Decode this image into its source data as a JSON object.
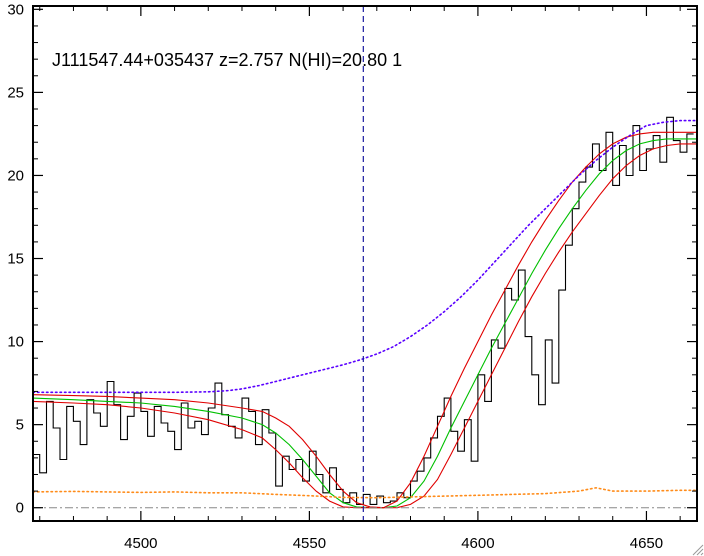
{
  "chart_data": {
    "type": "line",
    "title": "J111547.44+035437 z=2.757 N(HI)=20.80 1",
    "xlabel": "",
    "ylabel": "",
    "xlim": [
      4468,
      4665
    ],
    "ylim": [
      -0.8,
      30.2
    ],
    "x_ticks": [
      4500,
      4550,
      4600,
      4650
    ],
    "x_tick_labels": [
      "4500",
      "4550",
      "4600",
      "4650"
    ],
    "y_ticks": [
      0,
      5,
      10,
      15,
      20,
      25,
      30
    ],
    "y_tick_labels": [
      "0",
      "5",
      "10",
      "15",
      "20",
      "25",
      "30"
    ],
    "grid": false,
    "legend": "none",
    "reference_lines": {
      "dashed_vertical_x": 4566,
      "dash_dot_horizontal_y": 0
    },
    "colors": {
      "flux": "#000000",
      "model": "#00c000",
      "model_bounds": "#e00000",
      "continuum": "#5a00ff",
      "error": "#ff8c1a",
      "marker": "#1a1aa0",
      "zero": "#888888"
    },
    "series": [
      {
        "style": "histogram",
        "color": "#000000",
        "x": [
          4468,
          4470,
          4472,
          4474,
          4476,
          4478,
          4480,
          4482,
          4484,
          4486,
          4488,
          4490,
          4492,
          4494,
          4496,
          4498,
          4500,
          4502,
          4504,
          4506,
          4508,
          4510,
          4512,
          4514,
          4516,
          4518,
          4520,
          4522,
          4524,
          4526,
          4528,
          4530,
          4532,
          4534,
          4536,
          4538,
          4540,
          4542,
          4544,
          4546,
          4548,
          4550,
          4552,
          4554,
          4556,
          4558,
          4560,
          4562,
          4564,
          4566,
          4568,
          4570,
          4572,
          4574,
          4576,
          4578,
          4580,
          4582,
          4584,
          4586,
          4588,
          4590,
          4592,
          4594,
          4596,
          4598,
          4600,
          4602,
          4604,
          4606,
          4608,
          4610,
          4612,
          4614,
          4616,
          4618,
          4620,
          4622,
          4624,
          4626,
          4628,
          4630,
          4632,
          4634,
          4636,
          4638,
          4640,
          4642,
          4644,
          4646,
          4648,
          4650,
          4652,
          4654,
          4656,
          4658,
          4660,
          4662
        ],
        "y": [
          3.2,
          2.1,
          6.4,
          4.8,
          2.9,
          6.1,
          5.2,
          3.8,
          6.5,
          5.7,
          4.9,
          7.6,
          6.2,
          4.1,
          5.5,
          6.9,
          5.8,
          4.3,
          6.1,
          5.1,
          4.6,
          3.5,
          6.3,
          4.8,
          5.2,
          4.4,
          6.0,
          7.5,
          5.6,
          4.9,
          4.2,
          6.6,
          5.8,
          3.8,
          5.9,
          4.5,
          1.3,
          3.1,
          2.3,
          2.9,
          1.6,
          3.4,
          2.0,
          0.9,
          2.4,
          1.1,
          0.3,
          0.9,
          0.2,
          0.8,
          0.2,
          0.7,
          0.3,
          0.4,
          0.9,
          0.6,
          1.6,
          2.2,
          3.0,
          4.2,
          5.5,
          6.6,
          4.6,
          3.4,
          5.3,
          2.8,
          8.0,
          6.4,
          10.1,
          9.6,
          13.2,
          12.5,
          14.3,
          10.3,
          8.0,
          6.2,
          10.1,
          7.5,
          13.1,
          15.8,
          18.0,
          19.6,
          20.5,
          21.9,
          20.3,
          22.6,
          19.4,
          21.8,
          20.0,
          23.0,
          20.3,
          21.6,
          22.4,
          20.8,
          23.5,
          22.1,
          21.4,
          22.5
        ]
      },
      {
        "color": "#00c000",
        "x": [
          4468,
          4480,
          4490,
          4500,
          4510,
          4520,
          4530,
          4536,
          4540,
          4544,
          4548,
          4552,
          4556,
          4560,
          4564,
          4568,
          4572,
          4576,
          4580,
          4584,
          4588,
          4592,
          4596,
          4600,
          4604,
          4608,
          4612,
          4616,
          4620,
          4624,
          4628,
          4632,
          4636,
          4640,
          4644,
          4648,
          4652,
          4656,
          4660,
          4665
        ],
        "y": [
          6.6,
          6.5,
          6.4,
          6.3,
          6.1,
          5.8,
          5.4,
          5.0,
          4.5,
          3.8,
          2.9,
          1.9,
          0.9,
          0.3,
          0.05,
          0.0,
          0.0,
          0.1,
          0.6,
          1.6,
          3.1,
          4.8,
          6.4,
          8.0,
          9.6,
          11.1,
          12.6,
          14.1,
          15.5,
          16.8,
          18.0,
          19.1,
          20.1,
          20.9,
          21.5,
          21.9,
          22.1,
          22.2,
          22.2,
          22.2
        ]
      },
      {
        "color": "#e00000",
        "x": [
          4468,
          4480,
          4490,
          4500,
          4510,
          4520,
          4530,
          4536,
          4540,
          4544,
          4548,
          4552,
          4556,
          4560,
          4564,
          4568,
          4572,
          4576,
          4580,
          4584,
          4588,
          4592,
          4596,
          4600,
          4604,
          4608,
          4612,
          4616,
          4620,
          4624,
          4628,
          4632,
          4636,
          4640,
          4644,
          4648,
          4652,
          4656,
          4660,
          4665
        ],
        "y": [
          6.8,
          6.75,
          6.7,
          6.6,
          6.5,
          6.3,
          6.0,
          5.8,
          5.4,
          4.9,
          4.1,
          3.1,
          2.0,
          1.0,
          0.3,
          0.05,
          0.0,
          0.4,
          1.5,
          3.1,
          4.9,
          6.7,
          8.4,
          10.0,
          11.6,
          13.1,
          14.6,
          16.0,
          17.3,
          18.5,
          19.6,
          20.5,
          21.3,
          21.9,
          22.3,
          22.5,
          22.6,
          22.6,
          22.6,
          22.6
        ]
      },
      {
        "color": "#e00000",
        "x": [
          4468,
          4480,
          4490,
          4500,
          4510,
          4520,
          4530,
          4536,
          4540,
          4544,
          4548,
          4552,
          4556,
          4560,
          4564,
          4568,
          4572,
          4576,
          4580,
          4584,
          4588,
          4592,
          4596,
          4600,
          4604,
          4608,
          4612,
          4616,
          4620,
          4624,
          4628,
          4632,
          4636,
          4640,
          4644,
          4648,
          4652,
          4656,
          4660,
          4665
        ],
        "y": [
          6.4,
          6.3,
          6.2,
          6.0,
          5.7,
          5.3,
          4.7,
          4.2,
          3.5,
          2.7,
          1.8,
          1.0,
          0.4,
          0.05,
          0.0,
          0.0,
          0.0,
          0.0,
          0.2,
          0.7,
          1.7,
          3.2,
          4.8,
          6.4,
          8.0,
          9.6,
          11.2,
          12.7,
          14.1,
          15.4,
          16.6,
          17.7,
          18.8,
          19.8,
          20.6,
          21.2,
          21.6,
          21.8,
          21.9,
          21.9
        ]
      },
      {
        "style": "dotted",
        "color": "#5a00ff",
        "x": [
          4468,
          4480,
          4490,
          4500,
          4510,
          4520,
          4526,
          4530,
          4535,
          4540,
          4545,
          4550,
          4555,
          4560,
          4565,
          4570,
          4575,
          4580,
          4585,
          4590,
          4595,
          4600,
          4605,
          4610,
          4615,
          4620,
          4625,
          4630,
          4635,
          4640,
          4645,
          4650,
          4655,
          4660,
          4665
        ],
        "y": [
          6.95,
          6.95,
          6.95,
          6.95,
          6.95,
          6.98,
          7.05,
          7.15,
          7.35,
          7.6,
          7.85,
          8.1,
          8.35,
          8.6,
          8.9,
          9.25,
          9.7,
          10.3,
          11.0,
          11.8,
          12.7,
          13.7,
          14.8,
          15.9,
          17.0,
          18.0,
          19.0,
          20.0,
          20.9,
          21.7,
          22.4,
          23.0,
          23.2,
          23.3,
          23.3
        ]
      },
      {
        "style": "dotted",
        "color": "#ff8c1a",
        "x": [
          4468,
          4480,
          4490,
          4500,
          4510,
          4520,
          4530,
          4540,
          4550,
          4560,
          4570,
          4580,
          4590,
          4600,
          4610,
          4620,
          4630,
          4635,
          4640,
          4650,
          4660,
          4665
        ],
        "y": [
          0.95,
          0.98,
          0.95,
          0.92,
          0.95,
          0.9,
          0.9,
          0.8,
          0.72,
          0.62,
          0.6,
          0.65,
          0.7,
          0.75,
          0.8,
          0.85,
          1.0,
          1.2,
          1.0,
          1.0,
          1.05,
          1.05
        ]
      }
    ]
  }
}
